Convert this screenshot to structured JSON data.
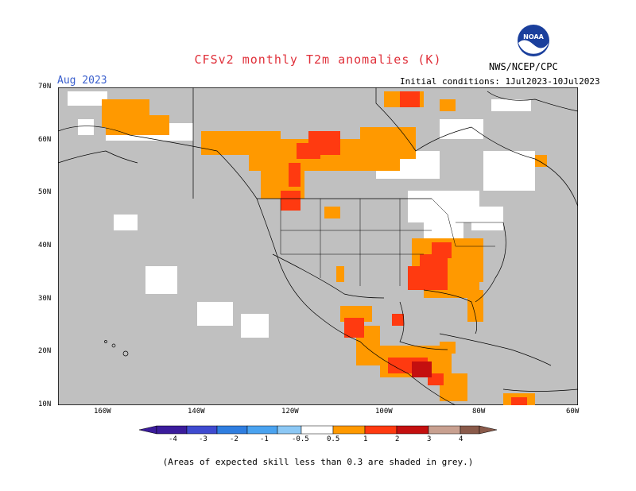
{
  "title": "CFSv2 monthly T2m anomalies (K)",
  "forecast_month": "Aug 2023",
  "initial_conditions": "Initial conditions: 1Jul2023-10Jul2023",
  "agency": "NWS/NCEP/CPC",
  "logo_text": "NOAA",
  "lat_labels": [
    "70N",
    "60N",
    "50N",
    "40N",
    "30N",
    "20N",
    "10N"
  ],
  "lon_labels": [
    "160W",
    "140W",
    "120W",
    "100W",
    "80W",
    "60W"
  ],
  "colorbar": {
    "ticks": [
      "-4",
      "-3",
      "-2",
      "-1",
      "-0.5",
      "0.5",
      "1",
      "2",
      "3",
      "4"
    ],
    "colors": [
      "#3b1c9c",
      "#3f4bd0",
      "#2f7ee0",
      "#4aa3f0",
      "#8cc8f5",
      "#ffffff",
      "#ff9900",
      "#ff3a10",
      "#c40f0f",
      "#a00000",
      "#c8a090",
      "#8a5a4a"
    ]
  },
  "note": "(Areas of expected skill less than 0.3 are shaded in grey.)"
}
